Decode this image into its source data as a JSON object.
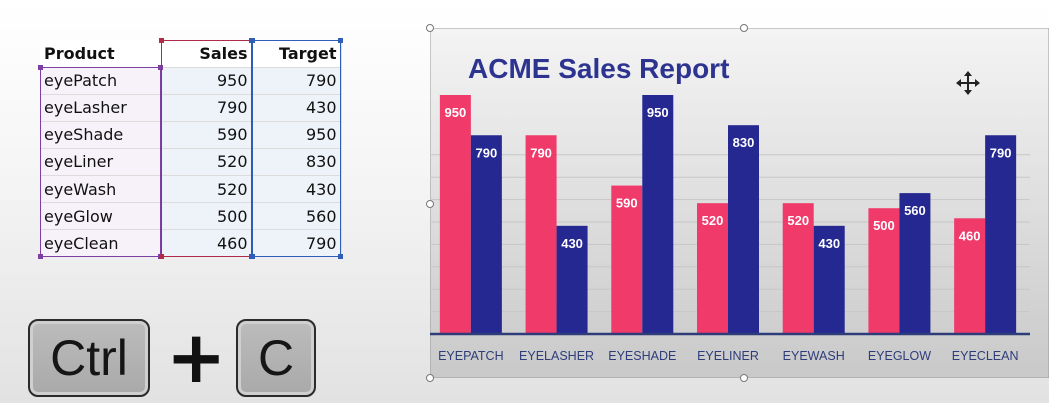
{
  "spreadsheet": {
    "headers": [
      "Product",
      "Sales",
      "Target"
    ],
    "rows": [
      {
        "product": "eyePatch",
        "sales": "950",
        "target": "790"
      },
      {
        "product": "eyeLasher",
        "sales": "790",
        "target": "430"
      },
      {
        "product": "eyeShade",
        "sales": "590",
        "target": "950"
      },
      {
        "product": "eyeLiner",
        "sales": "520",
        "target": "830"
      },
      {
        "product": "eyeWash",
        "sales": "520",
        "target": "430"
      },
      {
        "product": "eyeGlow",
        "sales": "500",
        "target": "560"
      },
      {
        "product": "eyeClean",
        "sales": "460",
        "target": "790"
      }
    ],
    "colors": {
      "product_range": "#7e3fa3",
      "sales_range": "#b02a4a",
      "target_range": "#2f5eb8"
    }
  },
  "shortcut": {
    "keys": [
      "Ctrl",
      "C"
    ],
    "separator": "+"
  },
  "chart_data": {
    "type": "bar",
    "title": "ACME Sales Report",
    "categories": [
      "EYEPATCH",
      "EYELASHER",
      "EYESHADE",
      "EYELINER",
      "EYEWASH",
      "EYEGLOW",
      "EYECLEAN"
    ],
    "series": [
      {
        "values": [
          950,
          790,
          590,
          520,
          520,
          500,
          460
        ],
        "color": "#ef3a6a"
      },
      {
        "values": [
          790,
          430,
          950,
          830,
          430,
          560,
          790
        ],
        "color": "#252891"
      }
    ],
    "ylim": [
      0,
      1000
    ],
    "grid": true,
    "legend": "none",
    "title_color": "#2d3490",
    "move_cursor_icon": "move-cursor-icon"
  }
}
